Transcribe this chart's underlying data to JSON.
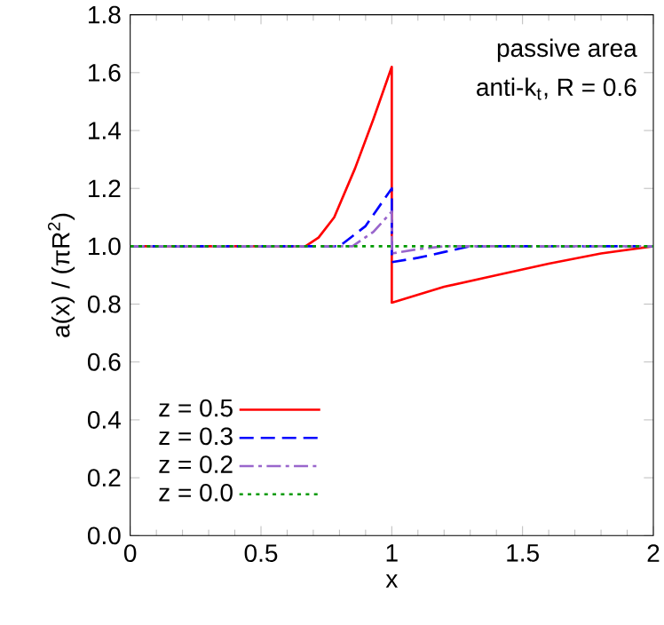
{
  "chart_data": {
    "type": "line",
    "xlabel": "x",
    "ylabel": "a(x) / (πR$^{2}$)",
    "annotations": [
      "passive area",
      "anti-k$_{t}$, R = 0.6"
    ],
    "xlim": [
      0,
      2
    ],
    "ylim": [
      0,
      1.8
    ],
    "xticks": [
      0,
      0.5,
      1,
      1.5,
      2
    ],
    "yticks": [
      {
        "value": 0,
        "label": "0.0"
      },
      {
        "value": 0.2,
        "label": "0.2"
      },
      {
        "value": 0.4,
        "label": "0.4"
      },
      {
        "value": 0.6,
        "label": "0.6"
      },
      {
        "value": 0.8,
        "label": "0.8"
      },
      {
        "value": 1,
        "label": "1.0"
      },
      {
        "value": 1.2,
        "label": "1.2"
      },
      {
        "value": 1.4,
        "label": "1.4"
      },
      {
        "value": 1.6,
        "label": "1.6"
      },
      {
        "value": 1.8,
        "label": "1.8"
      }
    ],
    "legend": "bottom left",
    "grid": false,
    "marker": "none",
    "series": [
      {
        "name": "z = 0.5",
        "color": "#ff0000",
        "line_style": "solid",
        "x": [
          0,
          0.67,
          0.72,
          0.78,
          0.86,
          0.93,
          1.0,
          1.0,
          1.2,
          1.4,
          1.6,
          1.8,
          2.0
        ],
        "values": [
          1.0,
          1.0,
          1.03,
          1.1,
          1.27,
          1.44,
          1.62,
          0.805,
          0.86,
          0.9,
          0.94,
          0.975,
          1.0
        ]
      },
      {
        "name": "z = 0.3",
        "color": "#0000ff",
        "line_style": "dashed",
        "x": [
          0,
          0.8,
          0.9,
          1.0,
          1.0,
          1.1,
          1.2,
          1.3,
          2.0
        ],
        "values": [
          1.0,
          1.0,
          1.07,
          1.2,
          0.945,
          0.96,
          0.98,
          1.0,
          1.0
        ]
      },
      {
        "name": "z = 0.2",
        "color": "#9966cc",
        "line_style": "dashdot",
        "x": [
          0,
          0.85,
          0.93,
          1.0,
          1.0,
          1.1,
          1.2,
          2.0
        ],
        "values": [
          1.0,
          1.0,
          1.05,
          1.12,
          0.975,
          0.99,
          1.0,
          1.0
        ]
      },
      {
        "name": "z = 0.0",
        "color": "#009900",
        "line_style": "dotted",
        "x": [
          0,
          2.0
        ],
        "values": [
          1.0,
          1.0
        ]
      }
    ]
  }
}
